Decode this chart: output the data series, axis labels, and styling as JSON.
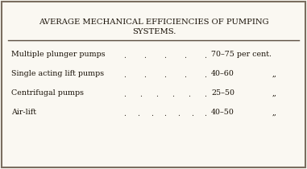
{
  "title_line1": "AVERAGE MECHANICAL EFFICIENCIES OF PUMPING",
  "title_line2": "SYSTEMS.",
  "rows": [
    {
      "name": "Multiple plunger pumps",
      "num_dots": 5,
      "value": "70–75 per cent.",
      "comma": ""
    },
    {
      "name": "Single acting lift pumps",
      "num_dots": 5,
      "value": "40–60",
      "comma": ",,"
    },
    {
      "name": "Centrifugal pumps",
      "num_dots": 6,
      "value": "25–50",
      "comma": ",,"
    },
    {
      "name": "Air-lift",
      "num_dots": 7,
      "value": "40–50",
      "comma": ",,"
    }
  ],
  "bg_color": "#faf8f2",
  "border_color": "#7a6e60",
  "text_color": "#1a1208",
  "title_fontsize": 7.2,
  "row_fontsize": 6.8,
  "line_color": "#5a4e40",
  "dot_color": "#2a2218"
}
